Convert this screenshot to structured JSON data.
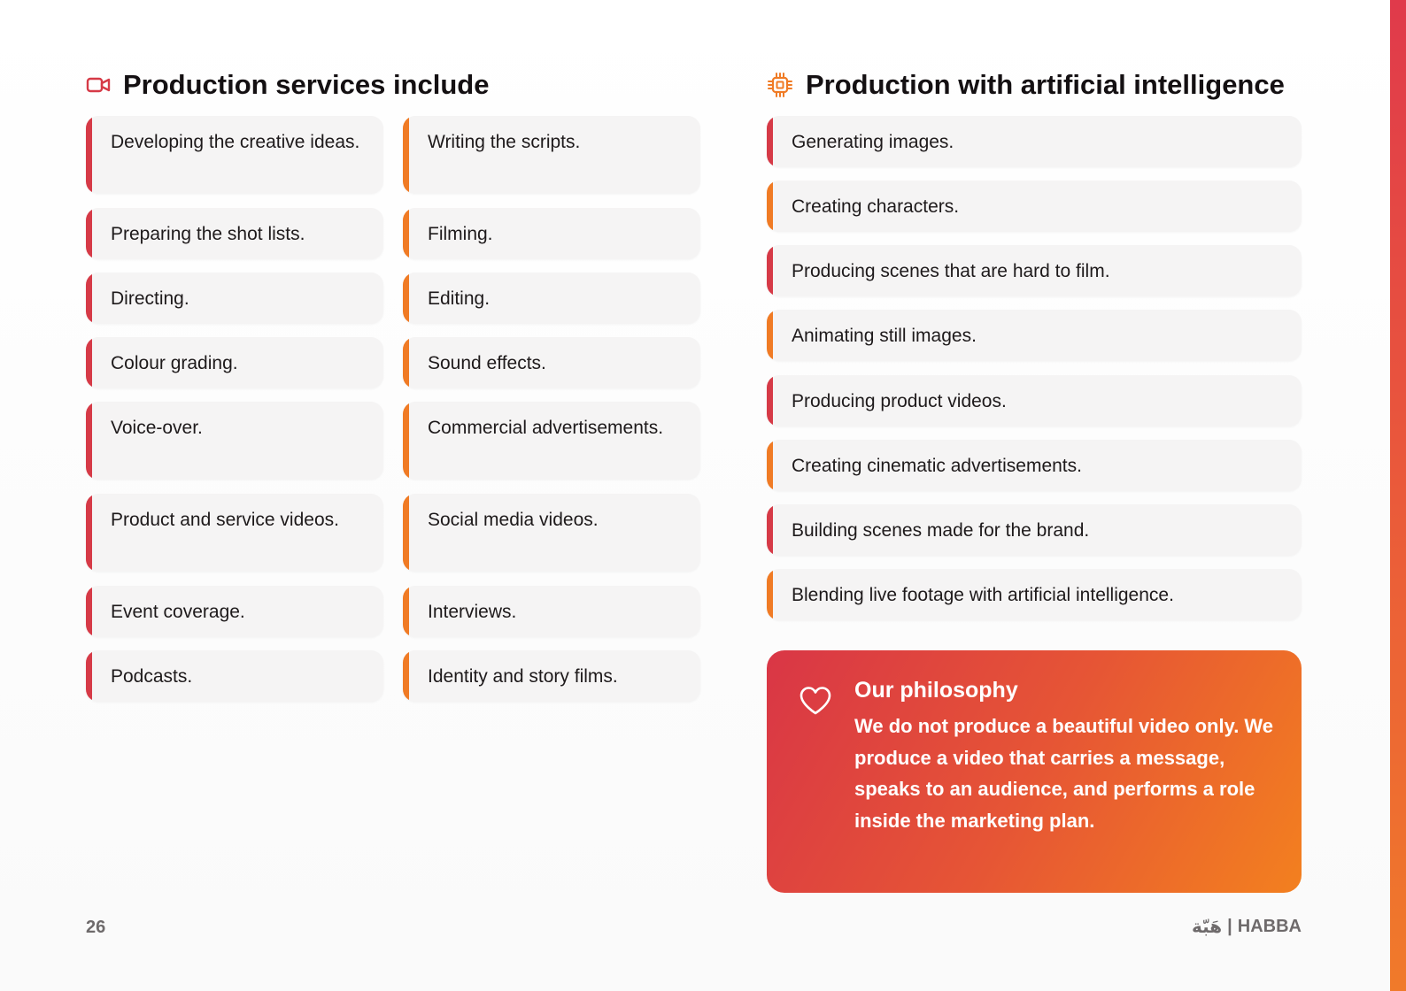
{
  "colors": {
    "accent_red": "#d63a47",
    "accent_orange": "#f07b25",
    "card_bg": "#f5f4f4"
  },
  "left_section": {
    "icon": "video-camera-icon",
    "title": "Production services include",
    "items": [
      "Developing the creative ideas.",
      "Writing the scripts.",
      "Preparing the shot lists.",
      "Filming.",
      "Directing.",
      "Editing.",
      "Colour grading.",
      "Sound effects.",
      "Voice-over.",
      "Commercial advertisements.",
      "Product and service videos.",
      "Social media videos.",
      "Event coverage.",
      "Interviews.",
      "Podcasts.",
      "Identity and story films."
    ]
  },
  "right_section": {
    "icon": "chip-icon",
    "title": "Production with artificial intelligence",
    "items": [
      "Generating images.",
      "Creating characters.",
      "Producing scenes that are hard to film.",
      "Animating still images.",
      "Producing product videos.",
      "Creating cinematic advertisements.",
      "Building scenes made for the brand.",
      "Blending live footage with artificial intelligence."
    ]
  },
  "philosophy": {
    "icon": "heart-icon",
    "title": "Our philosophy",
    "text": "We do not produce a beautiful video only. We produce a video that carries a message, speaks to an audience, and performs a role inside the marketing plan."
  },
  "footer": {
    "page_number": "26",
    "brand_arabic": "هَبّة",
    "brand_separator": "|",
    "brand_latin": "HABBA"
  }
}
